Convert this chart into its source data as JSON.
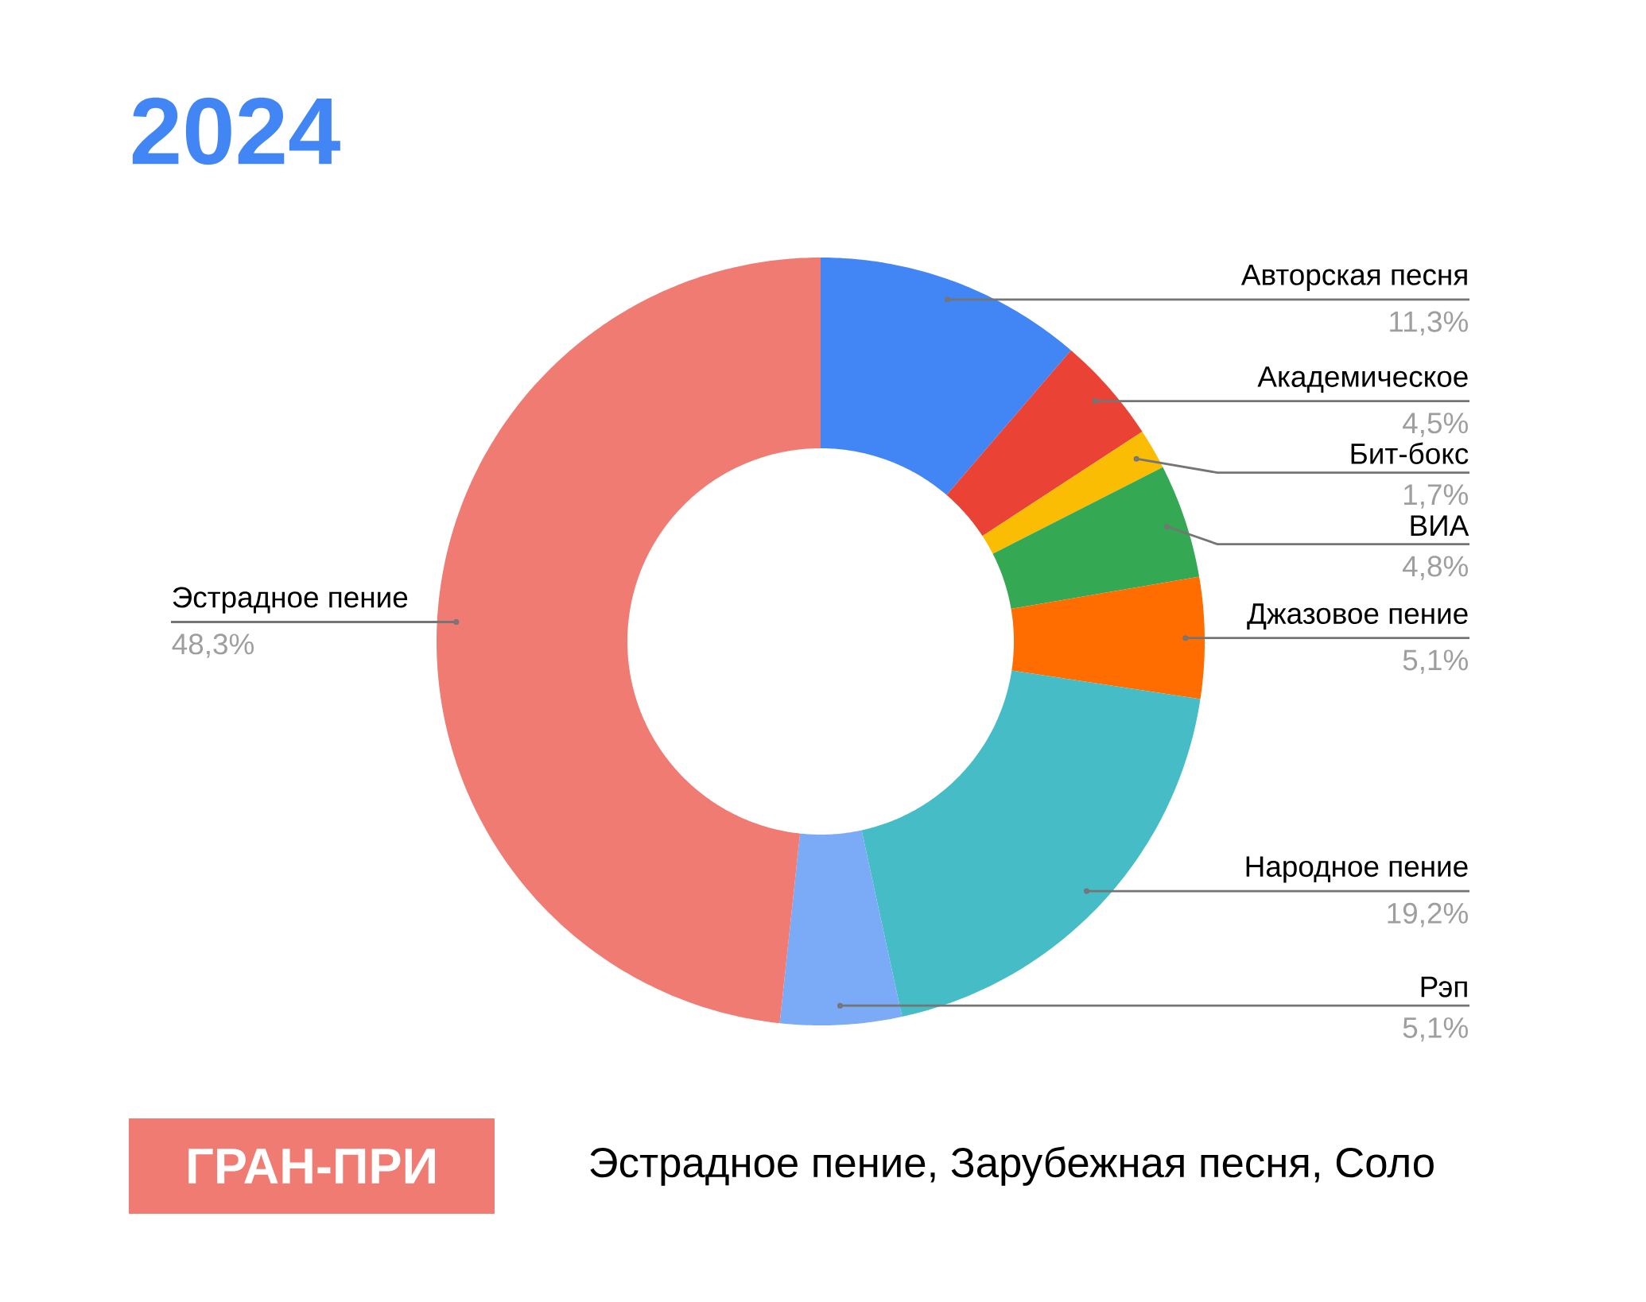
{
  "chart_data": {
    "type": "donut",
    "title": "2024",
    "categories": [
      "Авторская песня",
      "Академическое",
      "Бит-бокс",
      "ВИА",
      "Джазовое пение",
      "Народное пение",
      "Рэп",
      "Эстрадное пение"
    ],
    "values": [
      11.3,
      4.5,
      1.7,
      4.8,
      5.1,
      19.2,
      5.1,
      48.3
    ],
    "colors": [
      "#4285f4",
      "#ea4335",
      "#fbbc04",
      "#34a853",
      "#ff6d01",
      "#46bdc6",
      "#7baaf7",
      "#f07b72"
    ],
    "value_labels": [
      "11,3%",
      "4,5%",
      "1,7%",
      "4,8%",
      "5,1%",
      "19,2%",
      "5,1%",
      "48,3%"
    ],
    "annotations": [
      "ГРАН-ПРИ",
      "Эстрадное пение, Зарубежная песня, Соло"
    ]
  }
}
